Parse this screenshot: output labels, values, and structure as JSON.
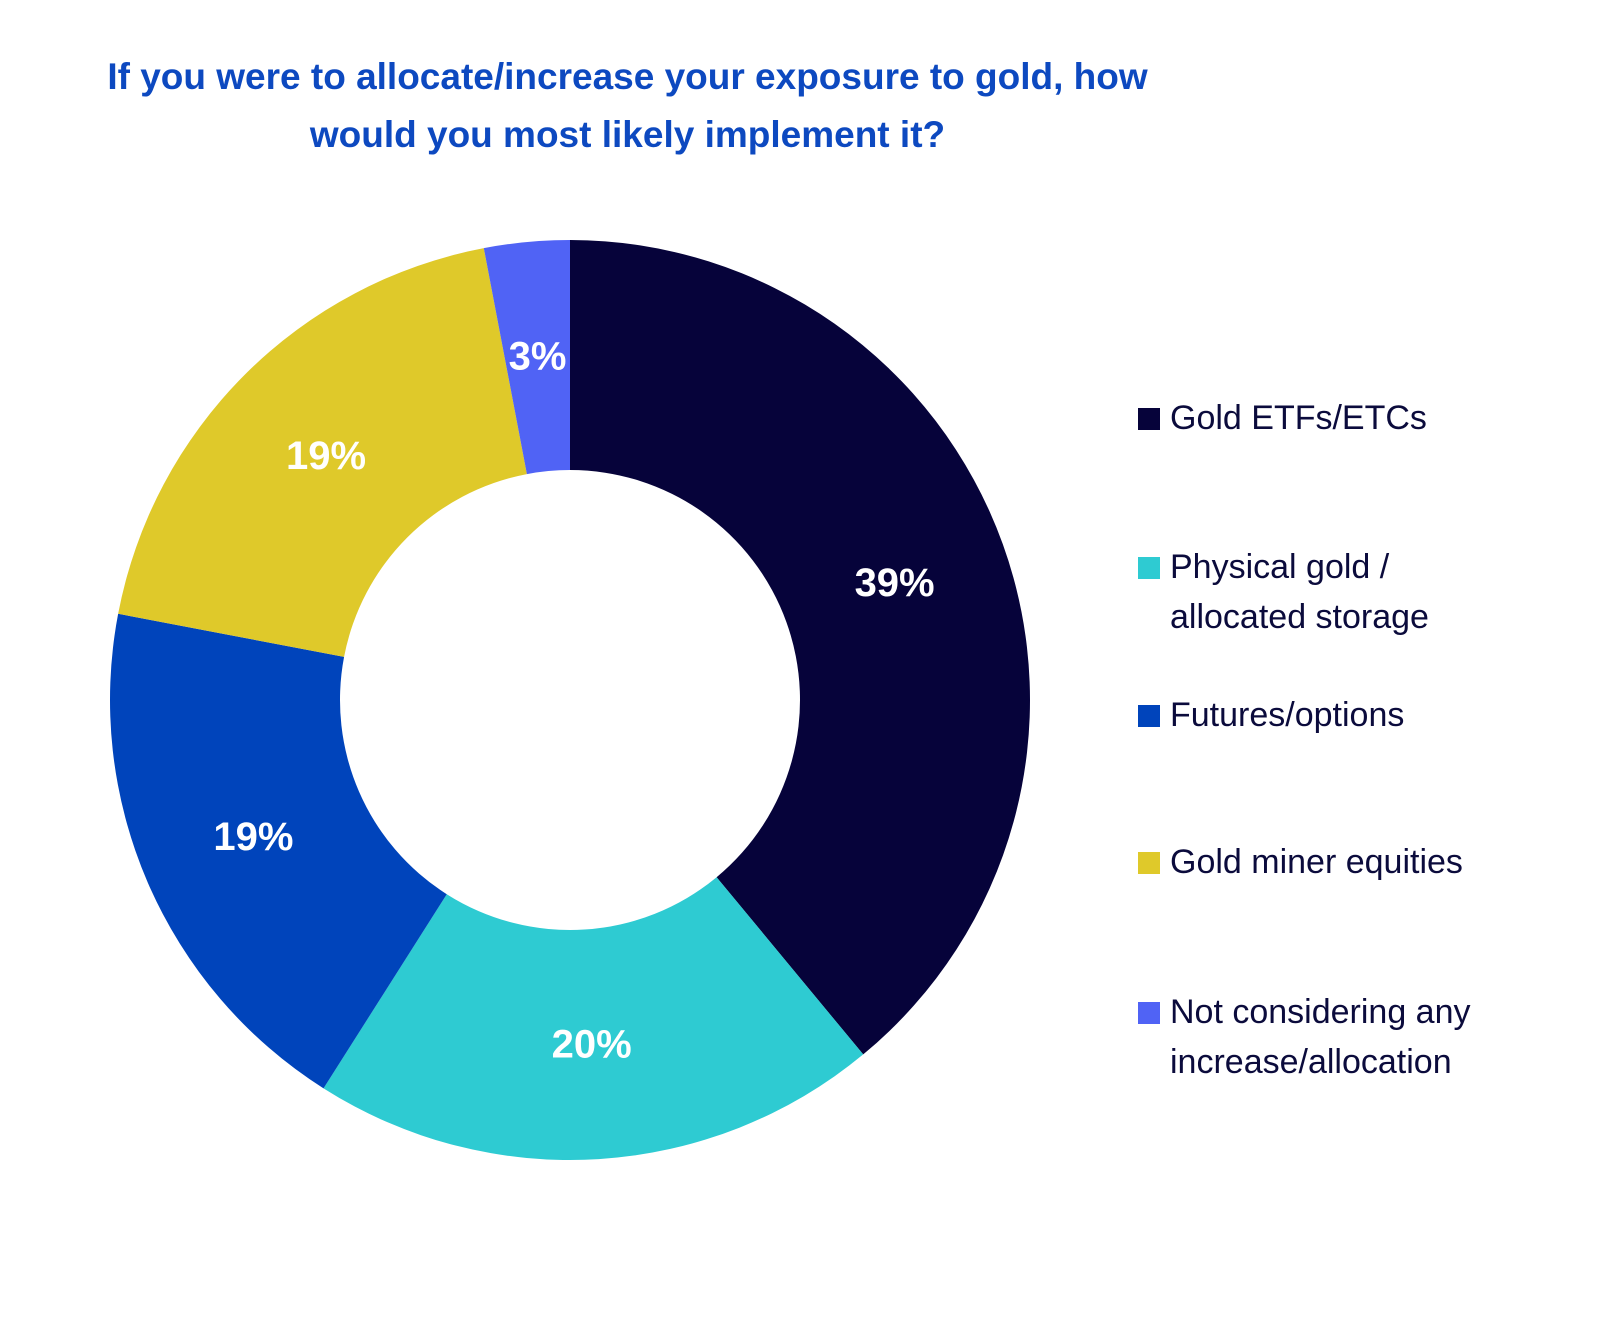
{
  "chart_data": {
    "type": "pie",
    "variant": "donut",
    "title_lines": [
      "If you were to allocate/increase your exposure to gold, how",
      "would you most likely implement it?"
    ],
    "slices": [
      {
        "label_lines": [
          "Gold ETFs/ETCs"
        ],
        "value": 39,
        "data_label": "39%",
        "color": "#06033a"
      },
      {
        "label_lines": [
          "Physical gold /",
          "allocated storage"
        ],
        "value": 20,
        "data_label": "20%",
        "color": "#2ecbd2"
      },
      {
        "label_lines": [
          "Futures/options"
        ],
        "value": 19,
        "data_label": "19%",
        "color": "#0044bb"
      },
      {
        "label_lines": [
          "Gold miner equities"
        ],
        "value": 19,
        "data_label": "19%",
        "color": "#dfc92a"
      },
      {
        "label_lines": [
          "Not considering any",
          "increase/allocation"
        ],
        "value": 3,
        "data_label": "3%",
        "color": "#5063f5"
      }
    ],
    "legend_position": "right"
  }
}
